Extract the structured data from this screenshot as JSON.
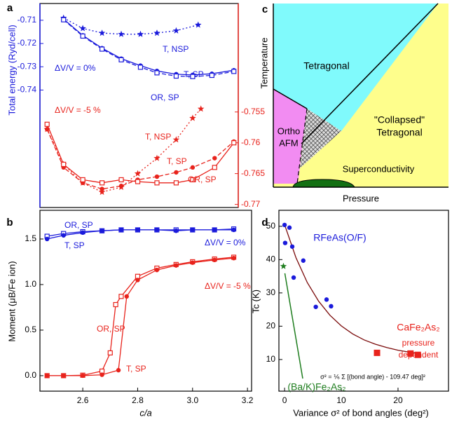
{
  "chart_data": [
    {
      "type": "line",
      "panel": "a",
      "ylabel": "Total energy   (Ryd/cell)",
      "xlim": [
        2.444,
        3.166
      ],
      "ylim": [
        -0.7905,
        -0.7028
      ],
      "y2lim": [
        -0.7705,
        -0.7374
      ],
      "yticks": [
        -0.71,
        -0.72,
        -0.73,
        -0.74
      ],
      "y2ticks": [
        -0.755,
        -0.76,
        -0.765,
        -0.77
      ],
      "y_color": "#1a1adb",
      "y2_color": "#e8231c",
      "annotations": [
        "ΔV/V = 0%",
        "ΔV/V = -5 %"
      ],
      "series": [
        {
          "name": "T, NSP",
          "color": "#1a1adb",
          "marker": "star",
          "dash": "dotted",
          "x": [
            2.53,
            2.6,
            2.67,
            2.74,
            2.81,
            2.87,
            2.94,
            3.02
          ],
          "values": [
            -0.709,
            -0.7135,
            -0.7155,
            -0.716,
            -0.716,
            -0.7155,
            -0.7145,
            -0.712
          ]
        },
        {
          "name": "T, SP",
          "color": "#1a1adb",
          "marker": "circle",
          "dash": "solid",
          "x": [
            2.53,
            2.6,
            2.67,
            2.74,
            2.81,
            2.87,
            2.94,
            3.0,
            3.07,
            3.15
          ],
          "values": [
            -0.7095,
            -0.7165,
            -0.722,
            -0.7265,
            -0.7295,
            -0.7318,
            -0.7332,
            -0.7335,
            -0.733,
            -0.7315
          ]
        },
        {
          "name": "OR, SP",
          "color": "#1a1adb",
          "marker": "square-open",
          "dash": "dashed",
          "x": [
            2.53,
            2.6,
            2.67,
            2.74,
            2.81,
            2.87,
            2.94,
            3.0,
            3.07,
            3.15
          ],
          "values": [
            -0.7098,
            -0.7168,
            -0.7224,
            -0.727,
            -0.7302,
            -0.7326,
            -0.734,
            -0.7342,
            -0.7337,
            -0.732
          ]
        },
        {
          "name": "T, NSP",
          "color": "#e8231c",
          "marker": "star",
          "dash": "dotted",
          "axis": "y2",
          "x": [
            2.47,
            2.53,
            2.6,
            2.67,
            2.74,
            2.8,
            2.87,
            2.94,
            3.0,
            3.03
          ],
          "values": [
            -0.7578,
            -0.7635,
            -0.7665,
            -0.768,
            -0.7672,
            -0.765,
            -0.7625,
            -0.7595,
            -0.756,
            -0.7545
          ]
        },
        {
          "name": "T, SP",
          "color": "#e8231c",
          "marker": "circle",
          "dash": "dashed",
          "axis": "y2",
          "x": [
            2.47,
            2.53,
            2.6,
            2.67,
            2.74,
            2.8,
            2.87,
            2.94,
            3.0,
            3.08,
            3.15
          ],
          "values": [
            -0.7578,
            -0.764,
            -0.7665,
            -0.7675,
            -0.767,
            -0.766,
            -0.7655,
            -0.7648,
            -0.764,
            -0.7625,
            -0.7598
          ]
        },
        {
          "name": "OR, SP",
          "color": "#e8231c",
          "marker": "square-open",
          "dash": "solid",
          "axis": "y2",
          "x": [
            2.47,
            2.53,
            2.6,
            2.67,
            2.74,
            2.8,
            2.87,
            2.94,
            3.0,
            3.08,
            3.15
          ],
          "values": [
            -0.757,
            -0.7635,
            -0.766,
            -0.7665,
            -0.766,
            -0.7663,
            -0.7665,
            -0.7665,
            -0.766,
            -0.764,
            -0.76
          ]
        }
      ]
    },
    {
      "type": "line",
      "panel": "b",
      "xlabel": "c/a",
      "ylabel": "Moment   (μB/Fe ion)",
      "xlim": [
        2.444,
        3.215
      ],
      "ylim": [
        -0.17,
        1.815
      ],
      "xticks": [
        2.6,
        2.8,
        {
          "value": 3.0,
          "label": "3.0"
        },
        3.2
      ],
      "yticks": [
        {
          "value": 0,
          "label": "0.0"
        },
        0.5,
        {
          "value": 1,
          "label": "1.0"
        },
        1.5
      ],
      "annotations": [
        "ΔV/V = 0%",
        "ΔV/V = -5 %"
      ],
      "series": [
        {
          "name": "OR, SP",
          "color": "#1a1adb",
          "marker": "square-open",
          "dash": "solid",
          "x": [
            2.47,
            2.53,
            2.6,
            2.67,
            2.74,
            2.8,
            2.87,
            2.94,
            3.0,
            3.08,
            3.15
          ],
          "values": [
            1.53,
            1.56,
            1.58,
            1.59,
            1.6,
            1.6,
            1.6,
            1.6,
            1.6,
            1.6,
            1.61
          ]
        },
        {
          "name": "T, SP",
          "color": "#1a1adb",
          "marker": "circle",
          "dash": "solid",
          "x": [
            2.47,
            2.53,
            2.6,
            2.67,
            2.74,
            2.8,
            2.87,
            2.94,
            3.0,
            3.08,
            3.15
          ],
          "values": [
            1.5,
            1.54,
            1.57,
            1.59,
            1.6,
            1.6,
            1.6,
            1.59,
            1.6,
            1.6,
            1.6
          ]
        },
        {
          "name": "OR, SP",
          "color": "#e8231c",
          "marker": "square-open",
          "dash": "solid",
          "x": [
            2.47,
            2.53,
            2.6,
            2.67,
            2.7,
            2.72,
            2.74,
            2.8,
            2.87,
            2.94,
            3.0,
            3.08,
            3.15
          ],
          "values": [
            0,
            0,
            0.005,
            0.05,
            0.25,
            0.78,
            0.87,
            1.09,
            1.18,
            1.22,
            1.25,
            1.28,
            1.3
          ]
        },
        {
          "name": "T, SP",
          "color": "#e8231c",
          "marker": "circle",
          "dash": "solid",
          "x": [
            2.47,
            2.53,
            2.6,
            2.67,
            2.73,
            2.76,
            2.8,
            2.87,
            2.94,
            3.0,
            3.08,
            3.15
          ],
          "values": [
            0,
            0,
            0,
            0.01,
            0.06,
            0.87,
            1.05,
            1.16,
            1.21,
            1.24,
            1.27,
            1.29
          ]
        }
      ]
    },
    {
      "type": "phase-diagram",
      "panel": "c",
      "xlabel": "Pressure",
      "ylabel": "Temperature",
      "region_labels": [
        "Tetragonal",
        "Ortho",
        "AFM",
        "\"Collapsed\"",
        "Tetragonal",
        "Superconductivity"
      ]
    },
    {
      "type": "scatter",
      "panel": "d",
      "xlabel": "Variance σ² of bond angles  (deg²)",
      "ylabel": "Tc  (K)",
      "xlim": [
        -1,
        28.9
      ],
      "ylim": [
        0.5,
        54.8
      ],
      "xticks": [
        0,
        10,
        20
      ],
      "yticks": [
        10,
        20,
        30,
        40,
        50
      ],
      "annotations": [
        "pressure",
        "dependent",
        "σ² = ⅙ Σ [(bond angle) - 109.47 deg]²"
      ],
      "series": [
        {
          "color": "#7a0a0a",
          "dash": "solid",
          "x": [
            0,
            2,
            4,
            6,
            8,
            10,
            12,
            14,
            16,
            18,
            20,
            22,
            24
          ],
          "values": [
            50.5,
            40.6,
            33.1,
            27.5,
            23.3,
            20.1,
            17.7,
            15.9,
            14.6,
            13.6,
            12.8,
            12.2,
            11.8
          ]
        },
        {
          "name": "RFeAs(O/F)",
          "color": "#1a1adb",
          "marker": "circle",
          "x": [
            0,
            0.86,
            0.1,
            1.35,
            3.3,
            1.6,
            5.5,
            7.4,
            8.2
          ],
          "values": [
            50.4,
            49.6,
            45,
            43.9,
            39.7,
            34.6,
            25.8,
            28,
            26
          ]
        },
        {
          "name": "CaFe₂As₂",
          "color": "#e8231c",
          "marker": "square",
          "x": [
            16.3,
            22.2,
            23.5
          ],
          "values": [
            12,
            11.8,
            11.4
          ]
        },
        {
          "name": "(Ba/K)Fe₂As₂",
          "color": "#1e7d1e",
          "marker": "star",
          "x": [
            -0.2
          ],
          "values": [
            38
          ]
        }
      ]
    }
  ]
}
